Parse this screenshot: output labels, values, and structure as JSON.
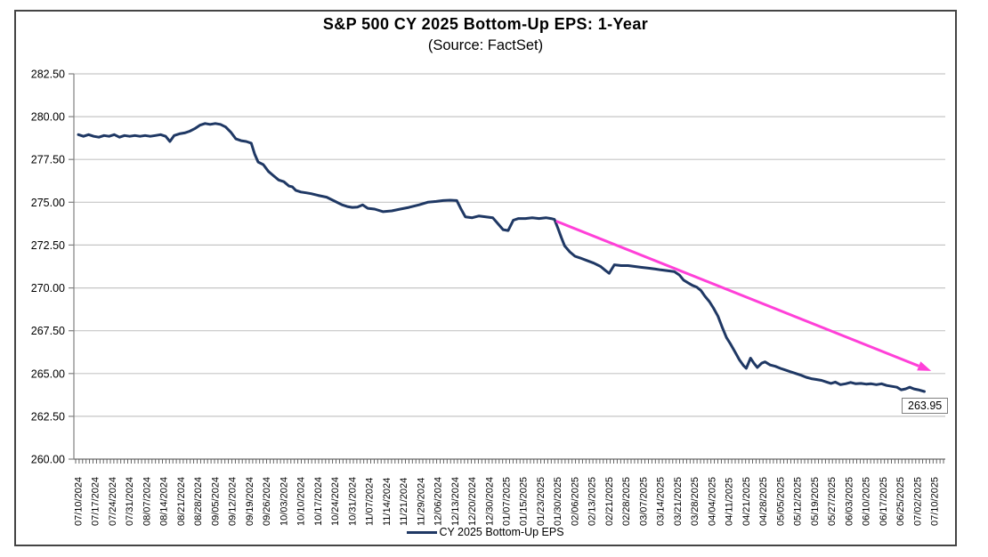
{
  "page": {
    "title": "S&P 500 CY 2025 Bottom-Up EPS: 1-Year",
    "subtitle": "(Source: FactSet)"
  },
  "colors": {
    "series_line": "#1F3864",
    "trend_arrow": "#FF40D8",
    "gridline": "#C6C6C6",
    "axis": "#808080",
    "minor_tick": "#555555",
    "frame_border": "#444444",
    "text": "#000000"
  },
  "chart_data": {
    "type": "line",
    "title": "S&P 500 CY 2025 Bottom-Up EPS: 1-Year",
    "subtitle": "(Source: FactSet)",
    "xlabel": "",
    "ylabel": "",
    "ylim": [
      260,
      282.5
    ],
    "grid": true,
    "legend_position": "bottom",
    "x_unit": "week_index",
    "y_ticks": [
      260,
      262.5,
      265,
      267.5,
      270,
      272.5,
      275,
      277.5,
      280,
      282.5
    ],
    "y_tick_labels": [
      "260.00",
      "262.50",
      "265.00",
      "267.50",
      "270.00",
      "272.50",
      "275.00",
      "277.50",
      "280.00",
      "282.50"
    ],
    "x_tick_labels": [
      "07/10/2024",
      "07/17/2024",
      "07/24/2024",
      "07/31/2024",
      "08/07/2024",
      "08/14/2024",
      "08/21/2024",
      "08/28/2024",
      "09/05/2024",
      "09/12/2024",
      "09/19/2024",
      "09/26/2024",
      "10/03/2024",
      "10/10/2024",
      "10/17/2024",
      "10/24/2024",
      "10/31/2024",
      "11/07/2024",
      "11/14/2024",
      "11/21/2024",
      "11/29/2024",
      "12/06/2024",
      "12/13/2024",
      "12/20/2024",
      "12/30/2024",
      "01/07/2025",
      "01/15/2025",
      "01/23/2025",
      "01/30/2025",
      "02/06/2025",
      "02/13/2025",
      "02/21/2025",
      "02/28/2025",
      "03/07/2025",
      "03/14/2025",
      "03/21/2025",
      "03/28/2025",
      "04/04/2025",
      "04/11/2025",
      "04/21/2025",
      "04/28/2025",
      "05/05/2025",
      "05/12/2025",
      "05/19/2025",
      "05/27/2025",
      "06/03/2025",
      "06/10/2025",
      "06/17/2025",
      "06/25/2025",
      "07/02/2025",
      "07/10/2025"
    ],
    "series": [
      {
        "name": "CY 2025 Bottom-Up EPS",
        "color": "#1F3864",
        "points": [
          [
            0,
            278.95
          ],
          [
            0.3,
            278.85
          ],
          [
            0.6,
            278.95
          ],
          [
            0.9,
            278.85
          ],
          [
            1.2,
            278.8
          ],
          [
            1.5,
            278.9
          ],
          [
            1.8,
            278.85
          ],
          [
            2.1,
            278.95
          ],
          [
            2.4,
            278.8
          ],
          [
            2.7,
            278.9
          ],
          [
            3,
            278.85
          ],
          [
            3.3,
            278.9
          ],
          [
            3.6,
            278.85
          ],
          [
            3.9,
            278.9
          ],
          [
            4.2,
            278.85
          ],
          [
            4.5,
            278.9
          ],
          [
            4.8,
            278.95
          ],
          [
            5.1,
            278.85
          ],
          [
            5.35,
            278.55
          ],
          [
            5.6,
            278.9
          ],
          [
            5.9,
            279
          ],
          [
            6.2,
            279.05
          ],
          [
            6.5,
            279.15
          ],
          [
            6.8,
            279.3
          ],
          [
            7.1,
            279.5
          ],
          [
            7.4,
            279.6
          ],
          [
            7.7,
            279.55
          ],
          [
            8,
            279.6
          ],
          [
            8.3,
            279.55
          ],
          [
            8.6,
            279.4
          ],
          [
            8.9,
            279.1
          ],
          [
            9.2,
            278.7
          ],
          [
            9.5,
            278.6
          ],
          [
            9.8,
            278.55
          ],
          [
            10.1,
            278.45
          ],
          [
            10.3,
            277.8
          ],
          [
            10.5,
            277.35
          ],
          [
            10.8,
            277.2
          ],
          [
            11.1,
            276.8
          ],
          [
            11.4,
            276.55
          ],
          [
            11.7,
            276.3
          ],
          [
            12,
            276.2
          ],
          [
            12.3,
            275.95
          ],
          [
            12.5,
            275.9
          ],
          [
            12.7,
            275.7
          ],
          [
            13,
            275.6
          ],
          [
            13.3,
            275.55
          ],
          [
            13.6,
            275.5
          ],
          [
            14,
            275.4
          ],
          [
            14.5,
            275.3
          ],
          [
            15,
            275.05
          ],
          [
            15.4,
            274.85
          ],
          [
            15.7,
            274.75
          ],
          [
            16,
            274.7
          ],
          [
            16.3,
            274.72
          ],
          [
            16.6,
            274.85
          ],
          [
            16.9,
            274.65
          ],
          [
            17.3,
            274.6
          ],
          [
            17.8,
            274.45
          ],
          [
            18.3,
            274.5
          ],
          [
            18.8,
            274.6
          ],
          [
            19.3,
            274.7
          ],
          [
            19.9,
            274.85
          ],
          [
            20.4,
            275
          ],
          [
            20.9,
            275.05
          ],
          [
            21.3,
            275.1
          ],
          [
            21.7,
            275.12
          ],
          [
            22.1,
            275.1
          ],
          [
            22.35,
            274.6
          ],
          [
            22.6,
            274.15
          ],
          [
            23,
            274.1
          ],
          [
            23.4,
            274.2
          ],
          [
            23.8,
            274.15
          ],
          [
            24.2,
            274.1
          ],
          [
            24.5,
            273.75
          ],
          [
            24.8,
            273.4
          ],
          [
            25.1,
            273.35
          ],
          [
            25.4,
            273.95
          ],
          [
            25.7,
            274.05
          ],
          [
            26.1,
            274.05
          ],
          [
            26.5,
            274.1
          ],
          [
            26.9,
            274.05
          ],
          [
            27.3,
            274.1
          ],
          [
            27.6,
            274.05
          ],
          [
            27.8,
            274
          ],
          [
            28,
            273.5
          ],
          [
            28.2,
            272.95
          ],
          [
            28.4,
            272.45
          ],
          [
            28.7,
            272.1
          ],
          [
            29,
            271.85
          ],
          [
            29.3,
            271.75
          ],
          [
            29.7,
            271.6
          ],
          [
            30.1,
            271.45
          ],
          [
            30.5,
            271.25
          ],
          [
            30.8,
            271
          ],
          [
            31,
            270.85
          ],
          [
            31.3,
            271.35
          ],
          [
            31.7,
            271.3
          ],
          [
            32.1,
            271.3
          ],
          [
            32.5,
            271.25
          ],
          [
            32.9,
            271.2
          ],
          [
            33.3,
            271.15
          ],
          [
            33.7,
            271.1
          ],
          [
            34,
            271.05
          ],
          [
            34.4,
            271
          ],
          [
            34.8,
            270.95
          ],
          [
            35.1,
            270.75
          ],
          [
            35.35,
            270.45
          ],
          [
            35.6,
            270.3
          ],
          [
            35.85,
            270.15
          ],
          [
            36.1,
            270.05
          ],
          [
            36.35,
            269.85
          ],
          [
            36.6,
            269.5
          ],
          [
            36.85,
            269.2
          ],
          [
            37.1,
            268.8
          ],
          [
            37.35,
            268.35
          ],
          [
            37.6,
            267.7
          ],
          [
            37.85,
            267.1
          ],
          [
            38.1,
            266.7
          ],
          [
            38.35,
            266.25
          ],
          [
            38.6,
            265.8
          ],
          [
            38.85,
            265.45
          ],
          [
            39,
            265.3
          ],
          [
            39.25,
            265.9
          ],
          [
            39.45,
            265.6
          ],
          [
            39.65,
            265.35
          ],
          [
            39.9,
            265.6
          ],
          [
            40.1,
            265.68
          ],
          [
            40.4,
            265.5
          ],
          [
            40.7,
            265.42
          ],
          [
            41,
            265.3
          ],
          [
            41.3,
            265.2
          ],
          [
            41.6,
            265.1
          ],
          [
            41.9,
            265
          ],
          [
            42.2,
            264.9
          ],
          [
            42.5,
            264.78
          ],
          [
            42.8,
            264.7
          ],
          [
            43.1,
            264.65
          ],
          [
            43.4,
            264.6
          ],
          [
            43.7,
            264.5
          ],
          [
            43.95,
            264.42
          ],
          [
            44.2,
            264.5
          ],
          [
            44.5,
            264.35
          ],
          [
            44.8,
            264.4
          ],
          [
            45.1,
            264.48
          ],
          [
            45.4,
            264.4
          ],
          [
            45.7,
            264.42
          ],
          [
            46,
            264.38
          ],
          [
            46.3,
            264.4
          ],
          [
            46.6,
            264.35
          ],
          [
            46.9,
            264.4
          ],
          [
            47.2,
            264.3
          ],
          [
            47.5,
            264.25
          ],
          [
            47.8,
            264.2
          ],
          [
            48.05,
            264.05
          ],
          [
            48.3,
            264.1
          ],
          [
            48.55,
            264.2
          ],
          [
            48.8,
            264.1
          ],
          [
            49.05,
            264.05
          ],
          [
            49.4,
            263.95
          ]
        ]
      }
    ],
    "annotations": {
      "trend_arrow": {
        "type": "arrow",
        "color": "#FF40D8",
        "from": [
          27.9,
          273.9
        ],
        "to": [
          49.8,
          265.15
        ]
      },
      "end_value": {
        "text": "263.95",
        "at": [
          49.4,
          263.95
        ]
      }
    }
  }
}
